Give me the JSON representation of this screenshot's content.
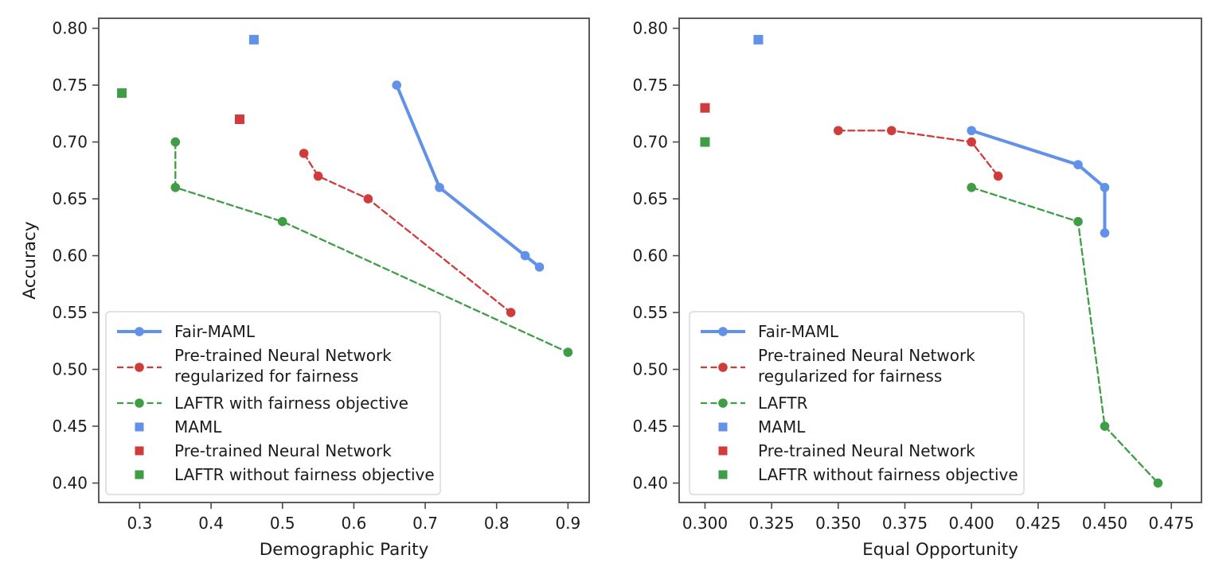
{
  "figure": {
    "background": "#ffffff",
    "text_color": "#1c1c1c",
    "spine_color": "#4a4a4a"
  },
  "colors": {
    "blue": "#6191E8",
    "red": "#D03B3B",
    "green": "#3F9E45",
    "legend_border": "#d9d9d9",
    "legend_bg": "rgba(255,255,255,0.85)"
  },
  "chart_data": [
    {
      "type": "line",
      "title": "",
      "xlabel": "Demographic Parity",
      "ylabel": "Accuracy",
      "xlim": [
        0.2426,
        0.9297
      ],
      "ylim": [
        0.3829,
        0.8088
      ],
      "grid": false,
      "legend_position": "lower left",
      "xticks": {
        "values": [
          0.3,
          0.4,
          0.5,
          0.6,
          0.7,
          0.8,
          0.9
        ],
        "labels": [
          "0.3",
          "0.4",
          "0.5",
          "0.6",
          "0.7",
          "0.8",
          "0.9"
        ]
      },
      "yticks": {
        "values": [
          0.4,
          0.45,
          0.5,
          0.55,
          0.6,
          0.65,
          0.7,
          0.75,
          0.8
        ],
        "labels": [
          "0.40",
          "0.45",
          "0.50",
          "0.55",
          "0.60",
          "0.65",
          "0.70",
          "0.75",
          "0.80"
        ]
      },
      "series": [
        {
          "id": "fair-maml",
          "name": "Fair-MAML",
          "color": "blue",
          "line": "solid",
          "line_width": 4,
          "marker": "circle",
          "points": [
            [
              0.66,
              0.75
            ],
            [
              0.72,
              0.66
            ],
            [
              0.84,
              0.6
            ],
            [
              0.86,
              0.59
            ]
          ]
        },
        {
          "id": "pretrained-nn-regularized",
          "name": "Pre-trained Neural Network\nregularized for fairness",
          "color": "red",
          "line": "dashed",
          "line_width": 2.3,
          "marker": "circle",
          "points": [
            [
              0.53,
              0.69
            ],
            [
              0.55,
              0.67
            ],
            [
              0.62,
              0.65
            ],
            [
              0.82,
              0.55
            ]
          ]
        },
        {
          "id": "laftr-with-fairness",
          "name": "LAFTR with fairness objective",
          "color": "green",
          "line": "dashed",
          "line_width": 2.3,
          "marker": "circle",
          "points": [
            [
              0.35,
              0.7
            ],
            [
              0.35,
              0.66
            ],
            [
              0.5,
              0.63
            ],
            [
              0.9,
              0.515
            ]
          ]
        },
        {
          "id": "maml",
          "name": "MAML",
          "color": "blue",
          "line": "none",
          "line_width": 0,
          "marker": "square",
          "points": [
            [
              0.46,
              0.79
            ]
          ]
        },
        {
          "id": "pretrained-nn",
          "name": "Pre-trained Neural Network",
          "color": "red",
          "line": "none",
          "line_width": 0,
          "marker": "square",
          "points": [
            [
              0.44,
              0.72
            ]
          ]
        },
        {
          "id": "laftr-without-fairness",
          "name": "LAFTR without fairness objective",
          "color": "green",
          "line": "none",
          "line_width": 0,
          "marker": "square",
          "points": [
            [
              0.275,
              0.743
            ]
          ]
        }
      ]
    },
    {
      "type": "line",
      "title": "",
      "xlabel": "Equal Opportunity",
      "ylabel": "",
      "xlim": [
        0.2903,
        0.4863
      ],
      "ylim": [
        0.3829,
        0.8088
      ],
      "grid": false,
      "legend_position": "lower left",
      "xticks": {
        "values": [
          0.3,
          0.325,
          0.35,
          0.375,
          0.4,
          0.425,
          0.45,
          0.475
        ],
        "labels": [
          "0.300",
          "0.325",
          "0.350",
          "0.375",
          "0.400",
          "0.425",
          "0.450",
          "0.475"
        ]
      },
      "yticks": {
        "values": [
          0.4,
          0.45,
          0.5,
          0.55,
          0.6,
          0.65,
          0.7,
          0.75,
          0.8
        ],
        "labels": [
          "0.40",
          "0.45",
          "0.50",
          "0.55",
          "0.60",
          "0.65",
          "0.70",
          "0.75",
          "0.80"
        ]
      },
      "series": [
        {
          "id": "fair-maml",
          "name": "Fair-MAML",
          "color": "blue",
          "line": "solid",
          "line_width": 4,
          "marker": "circle",
          "points": [
            [
              0.4,
              0.71
            ],
            [
              0.44,
              0.68
            ],
            [
              0.45,
              0.66
            ],
            [
              0.45,
              0.62
            ]
          ]
        },
        {
          "id": "pretrained-nn-regularized",
          "name": "Pre-trained Neural Network\nregularized for fairness",
          "color": "red",
          "line": "dashed",
          "line_width": 2.3,
          "marker": "circle",
          "points": [
            [
              0.35,
              0.71
            ],
            [
              0.37,
              0.71
            ],
            [
              0.4,
              0.7
            ],
            [
              0.41,
              0.67
            ]
          ]
        },
        {
          "id": "laftr",
          "name": "LAFTR",
          "color": "green",
          "line": "dashed",
          "line_width": 2.3,
          "marker": "circle",
          "points": [
            [
              0.4,
              0.66
            ],
            [
              0.44,
              0.63
            ],
            [
              0.45,
              0.45
            ],
            [
              0.47,
              0.4
            ]
          ]
        },
        {
          "id": "maml",
          "name": "MAML",
          "color": "blue",
          "line": "none",
          "line_width": 0,
          "marker": "square",
          "points": [
            [
              0.32,
              0.79
            ]
          ]
        },
        {
          "id": "pretrained-nn",
          "name": "Pre-trained Neural Network",
          "color": "red",
          "line": "none",
          "line_width": 0,
          "marker": "square",
          "points": [
            [
              0.3,
              0.73
            ]
          ]
        },
        {
          "id": "laftr-without-fairness",
          "name": "LAFTR without fairness objective",
          "color": "green",
          "line": "none",
          "line_width": 0,
          "marker": "square",
          "points": [
            [
              0.3,
              0.7
            ]
          ]
        }
      ]
    }
  ]
}
